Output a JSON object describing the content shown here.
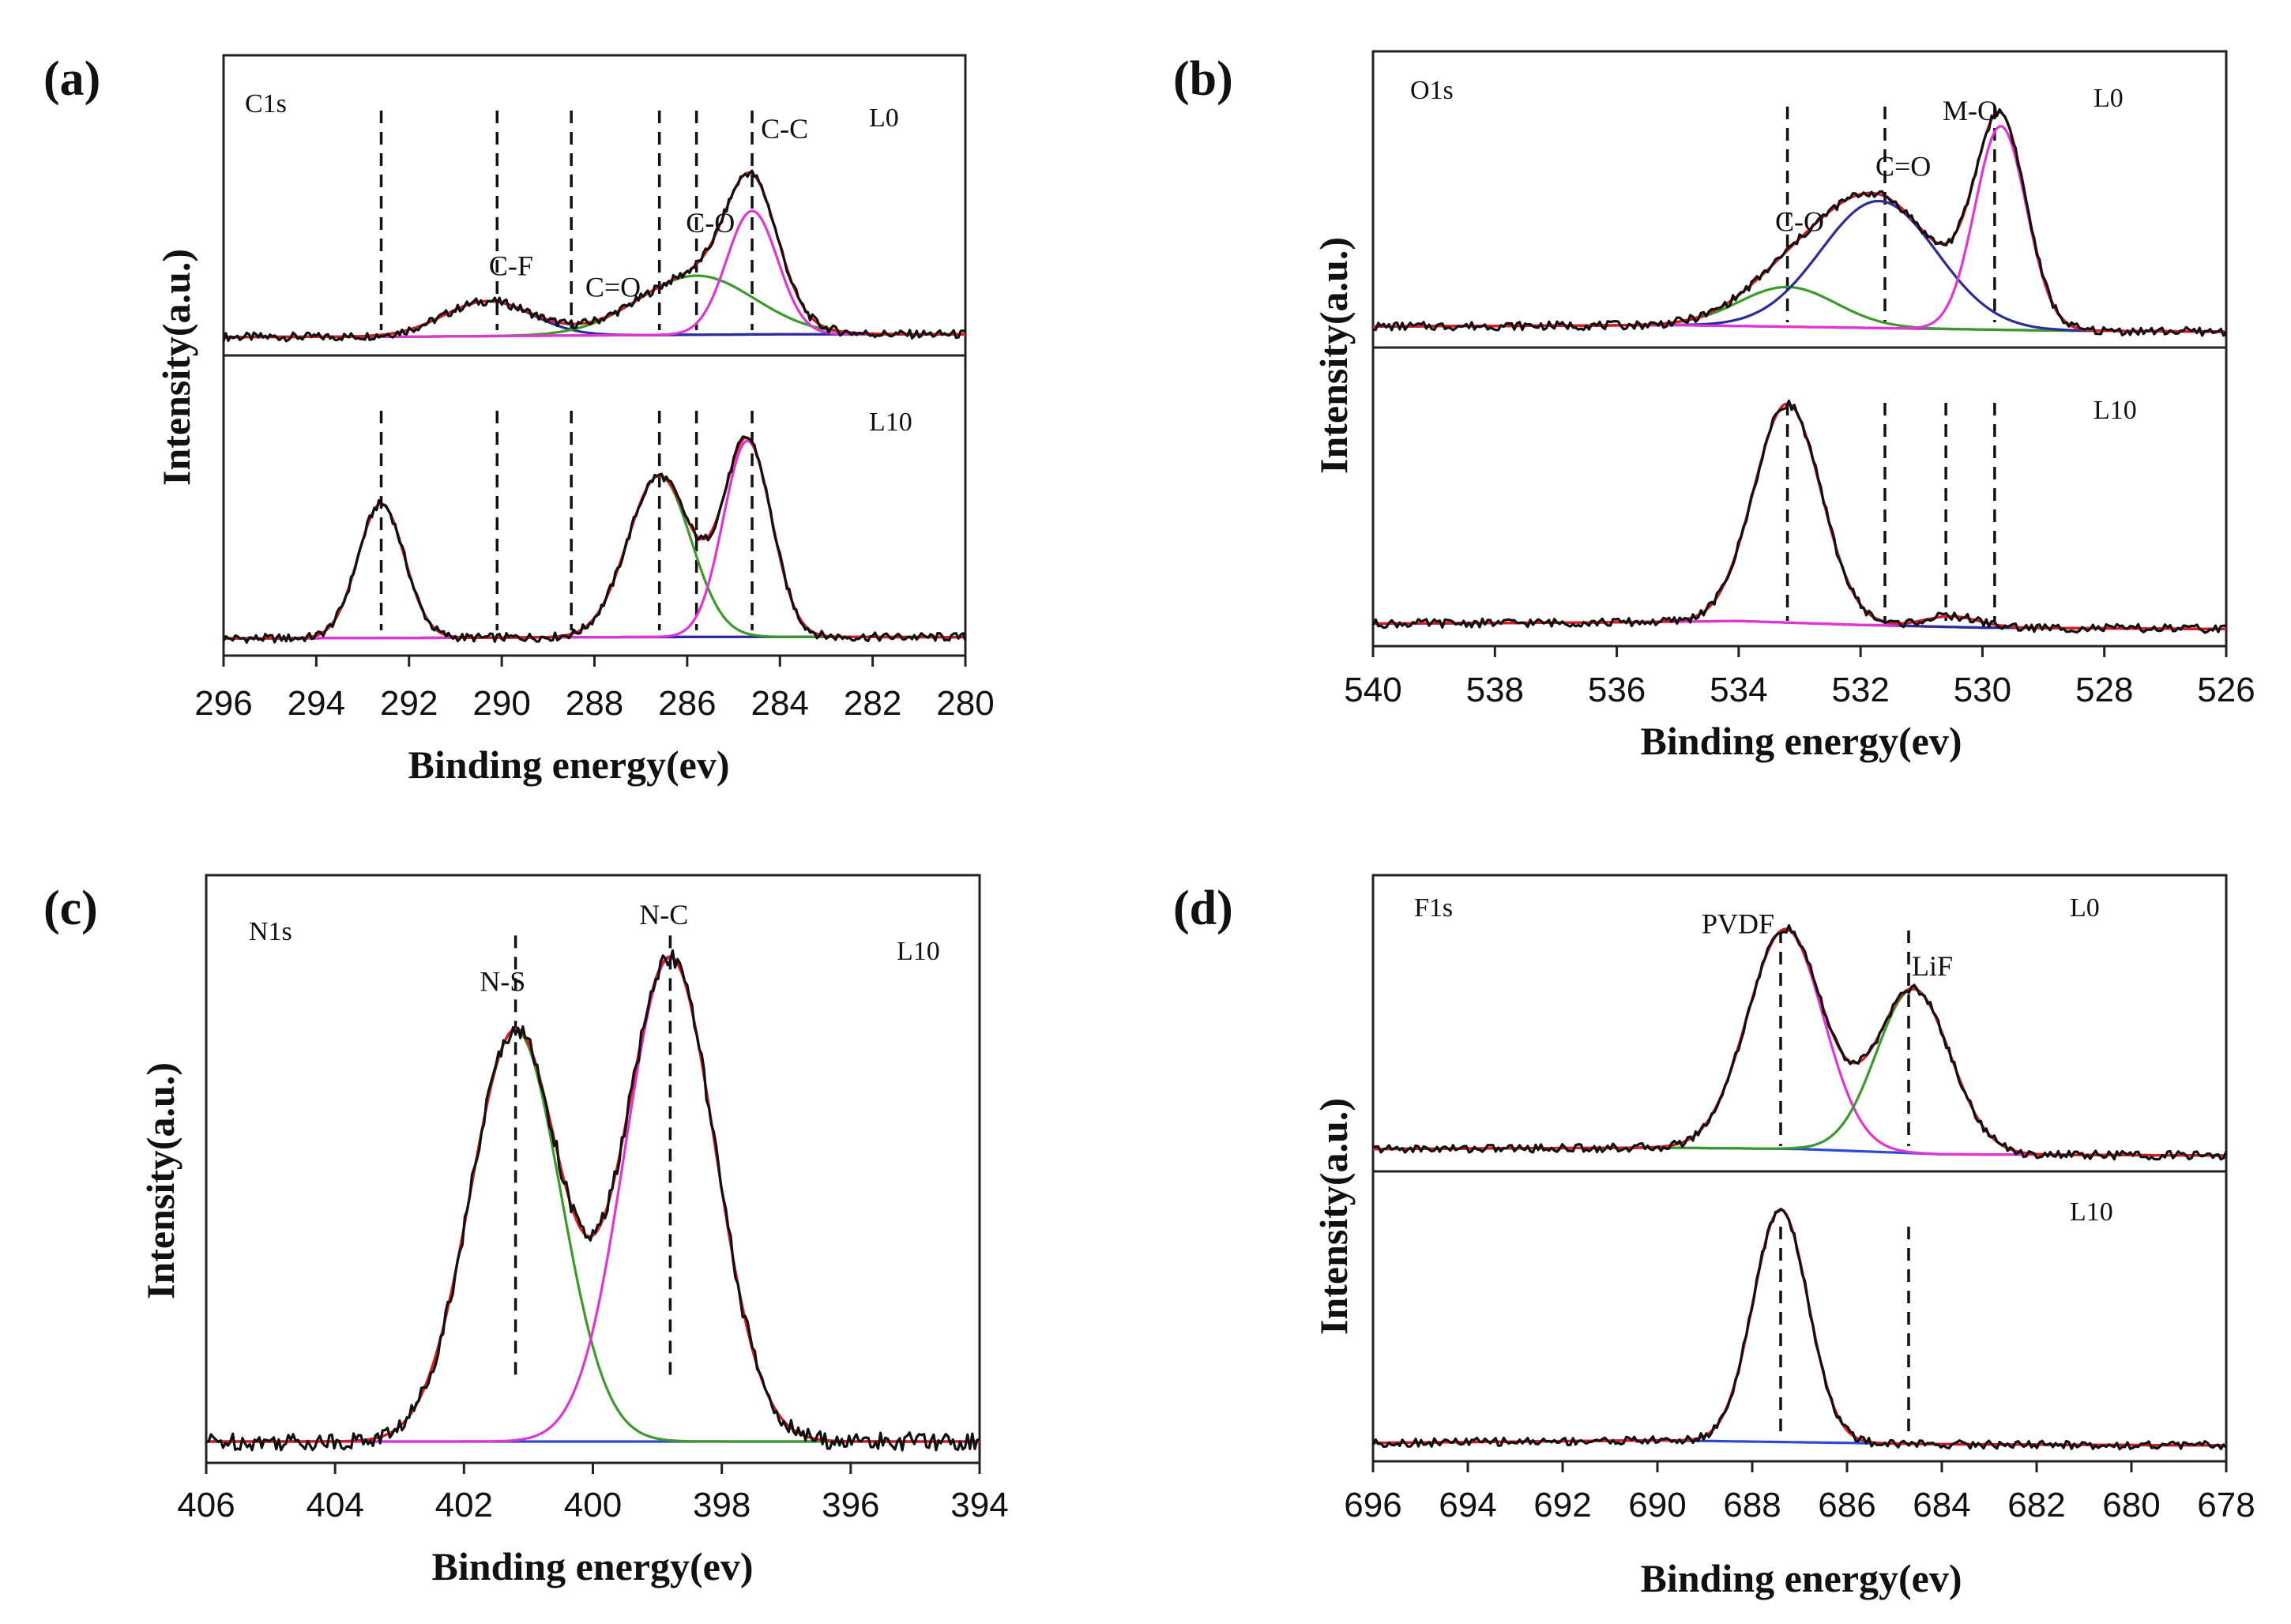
{
  "chart_data": [
    {
      "type": "line",
      "panel": "(a)",
      "region": "C1s",
      "xlabel": "Binding energy(ev)",
      "ylabel": "Intensity(a.u.)",
      "xlim": [
        296,
        280
      ],
      "xticks": [
        296,
        294,
        292,
        290,
        288,
        286,
        284,
        282,
        280
      ],
      "stacked": [
        {
          "sample": "L0",
          "baseline": [
            [
              296,
              1.0
            ],
            [
              292,
              1.1
            ],
            [
              288,
              1.6
            ],
            [
              284,
              2.0
            ],
            [
              280,
              2.0
            ]
          ],
          "peaks": [
            {
              "name": "C-F",
              "center": 290.3,
              "height": 13.0,
              "width": 0.95,
              "color": "#2b2b9a"
            },
            {
              "name": "C-O",
              "center": 285.8,
              "height": 22.0,
              "width": 1.25,
              "color": "#3a9a2a"
            },
            {
              "name": "C-C",
              "center": 284.6,
              "height": 46.0,
              "width": 0.55,
              "color": "#e234d6"
            }
          ],
          "reference_lines": [
            292.6,
            290.1,
            288.5,
            286.6,
            285.8,
            284.6
          ],
          "peak_labels": [
            {
              "text": "C-F",
              "x": 289.8,
              "y": 24
            },
            {
              "text": "C=O",
              "x": 287.6,
              "y": 16
            },
            {
              "text": "C-O",
              "x": 285.5,
              "y": 40
            },
            {
              "text": "C-C",
              "x": 283.9,
              "y": 75
            }
          ]
        },
        {
          "sample": "L10",
          "baseline": [
            [
              296,
              0.5
            ],
            [
              292,
              0.7
            ],
            [
              288,
              1.0
            ],
            [
              284,
              1.1
            ],
            [
              280,
              1.0
            ]
          ],
          "peaks": [
            {
              "name": "C-F",
              "center": 292.6,
              "height": 50.0,
              "width": 0.5,
              "color": "#2b2b9a"
            },
            {
              "name": "C-O",
              "center": 286.6,
              "height": 60.0,
              "width": 0.68,
              "color": "#3a9a2a"
            },
            {
              "name": "C-C",
              "center": 284.7,
              "height": 73.0,
              "width": 0.52,
              "color": "#e234d6"
            }
          ],
          "reference_lines": [
            292.6,
            290.1,
            288.5,
            286.6,
            285.8,
            284.6
          ]
        }
      ]
    },
    {
      "type": "line",
      "panel": "(b)",
      "region": "O1s",
      "xlabel": "Binding energy(ev)",
      "ylabel": "Intensity(a.u.)",
      "xlim": [
        540,
        526
      ],
      "xticks": [
        540,
        538,
        536,
        534,
        532,
        530,
        528,
        526
      ],
      "stacked": [
        {
          "sample": "L0",
          "baseline": [
            [
              540,
              2.0
            ],
            [
              535,
              2.5
            ],
            [
              532,
              1.5
            ],
            [
              529,
              0.5
            ],
            [
              526,
              0.0
            ]
          ],
          "peaks": [
            {
              "name": "C-O",
              "center": 533.2,
              "height": 15.0,
              "width": 0.8,
              "color": "#3a9a2a"
            },
            {
              "name": "C=O",
              "center": 531.7,
              "height": 48.0,
              "width": 0.95,
              "color": "#2b2b9a"
            },
            {
              "name": "M-O",
              "center": 529.7,
              "height": 77.0,
              "width": 0.42,
              "color": "#e234d6"
            }
          ],
          "reference_lines": [
            533.2,
            531.6,
            529.8
          ],
          "peak_labels": [
            {
              "text": "C-O",
              "x": 533.0,
              "y": 38
            },
            {
              "text": "C=O",
              "x": 531.3,
              "y": 59
            },
            {
              "text": "M-O",
              "x": 530.2,
              "y": 80
            }
          ]
        },
        {
          "sample": "L10",
          "baseline": [
            [
              540,
              2.5
            ],
            [
              536,
              3.0
            ],
            [
              534,
              3.5
            ],
            [
              532,
              2.0
            ],
            [
              530,
              1.0
            ],
            [
              526,
              0.5
            ]
          ],
          "peaks": [
            {
              "name": "C-O",
              "center": 533.2,
              "height": 82.0,
              "width": 0.55,
              "color": "#2b2b9a"
            },
            {
              "name": "C=O",
              "center": 530.5,
              "height": 4.0,
              "width": 0.45,
              "color": "#e234d6"
            }
          ],
          "reference_lines": [
            533.2,
            531.6,
            529.8,
            530.6
          ]
        }
      ]
    },
    {
      "type": "line",
      "panel": "(c)",
      "region": "N1s",
      "xlabel": "Binding energy(ev)",
      "ylabel": "Intensity(a.u.)",
      "xlim": [
        406,
        394
      ],
      "xticks": [
        406,
        404,
        402,
        400,
        398,
        396,
        394
      ],
      "stacked": [
        {
          "sample": "L10",
          "baseline": [
            [
              406,
              1.0
            ],
            [
              394,
              1.0
            ]
          ],
          "peaks": [
            {
              "name": "N-S",
              "center": 401.2,
              "height": 74.0,
              "width": 0.7,
              "color": "#3a9a2a"
            },
            {
              "name": "N-C",
              "center": 398.8,
              "height": 87.0,
              "width": 0.7,
              "color": "#e234d6"
            }
          ],
          "reference_lines": [
            401.2,
            398.8
          ],
          "peak_labels": [
            {
              "text": "N-S",
              "x": 401.4,
              "y": 82
            },
            {
              "text": "N-C",
              "x": 398.9,
              "y": 94
            }
          ]
        }
      ]
    },
    {
      "type": "line",
      "panel": "(d)",
      "region": "F1s",
      "xlabel": "Binding energy(ev)",
      "ylabel": "Intensity(a.u.)",
      "xlim": [
        696,
        678
      ],
      "xticks": [
        696,
        694,
        692,
        690,
        688,
        686,
        684,
        682,
        680,
        678
      ],
      "stacked": [
        {
          "sample": "L0",
          "baseline": [
            [
              696,
              2.5
            ],
            [
              690,
              3.0
            ],
            [
              687,
              2.5
            ],
            [
              684,
              0.5
            ],
            [
              678,
              0.0
            ]
          ],
          "peaks": [
            {
              "name": "PVDF",
              "center": 687.3,
              "height": 83.0,
              "width": 0.8,
              "color": "#e234d6"
            },
            {
              "name": "LiF",
              "center": 684.6,
              "height": 62.0,
              "width": 0.78,
              "color": "#3a9a2a"
            }
          ],
          "reference_lines": [
            687.4,
            684.7
          ],
          "peak_labels": [
            {
              "text": "PVDF",
              "x": 688.3,
              "y": 84
            },
            {
              "text": "LiF",
              "x": 684.2,
              "y": 68
            }
          ]
        },
        {
          "sample": "L10",
          "baseline": [
            [
              696,
              1.0
            ],
            [
              690,
              2.0
            ],
            [
              688,
              1.5
            ],
            [
              684,
              0.5
            ],
            [
              678,
              0.0
            ]
          ],
          "peaks": [
            {
              "name": "PVDF",
              "center": 687.4,
              "height": 90.0,
              "width": 0.58,
              "color": "#e234d6"
            }
          ],
          "reference_lines": [
            687.4,
            684.7
          ]
        }
      ]
    }
  ]
}
